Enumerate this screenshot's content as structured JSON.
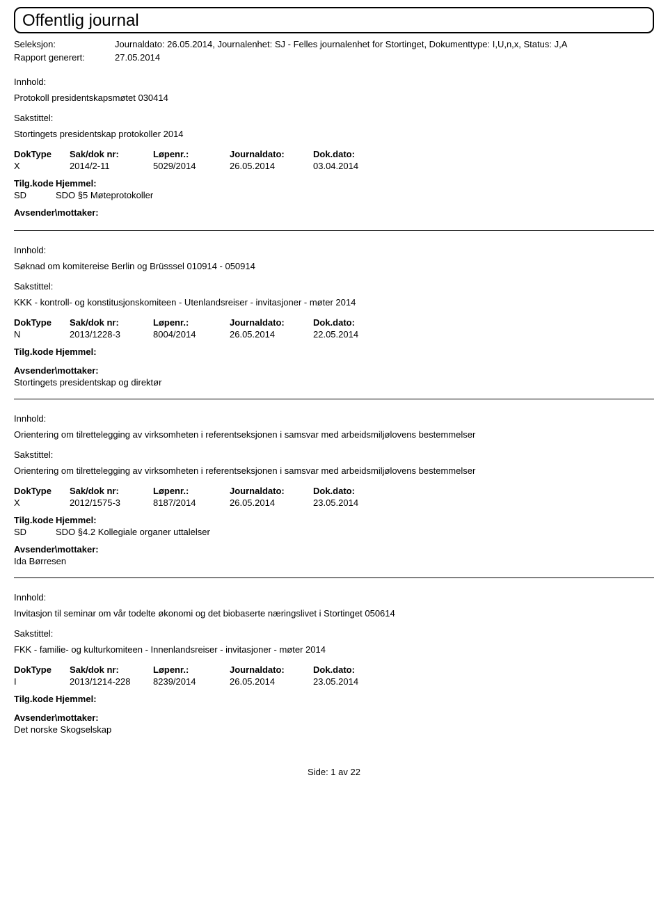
{
  "header": {
    "title": "Offentlig journal",
    "seleksjon_label": "Seleksjon:",
    "seleksjon_value": "Journaldato: 26.05.2014, Journalenhet: SJ - Felles journalenhet for Stortinget, Dokumenttype: I,U,n,x, Status: J,A",
    "rapport_label": "Rapport generert:",
    "rapport_value": "27.05.2014"
  },
  "labels": {
    "innhold": "Innhold:",
    "sakstittel": "Sakstittel:",
    "doktype": "DokType",
    "saknr": "Sak/dok nr:",
    "lopenr": "Løpenr.:",
    "journaldato": "Journaldato:",
    "dokdato": "Dok.dato:",
    "tilgkode": "Tilg.kode",
    "hjemmel": "Hjemmel:",
    "avsender": "Avsender\\mottaker:"
  },
  "entries": [
    {
      "innhold": "Protokoll presidentskapsmøtet 030414",
      "sakstittel": "Stortingets presidentskap protokoller 2014",
      "doktype": "X",
      "saknr": "2014/2-11",
      "lopenr": "5029/2014",
      "journaldato": "26.05.2014",
      "dokdato": "03.04.2014",
      "tilgkode": "SD",
      "hjemmel": "SDO §5 Møteprotokoller",
      "avsender": ""
    },
    {
      "innhold": "Søknad om komitereise Berlin og Brüsssel 010914 - 050914",
      "sakstittel": "KKK - kontroll- og konstitusjonskomiteen - Utenlandsreiser - invitasjoner - møter 2014",
      "doktype": "N",
      "saknr": "2013/1228-3",
      "lopenr": "8004/2014",
      "journaldato": "26.05.2014",
      "dokdato": "22.05.2014",
      "tilgkode": "",
      "hjemmel": "",
      "avsender": "Stortingets presidentskap og direktør"
    },
    {
      "innhold": "Orientering om tilrettelegging av virksomheten i referentseksjonen i samsvar med arbeidsmiljølovens bestemmelser",
      "sakstittel": "Orientering om tilrettelegging av virksomheten i referentseksjonen i samsvar med arbeidsmiljølovens bestemmelser",
      "doktype": "X",
      "saknr": "2012/1575-3",
      "lopenr": "8187/2014",
      "journaldato": "26.05.2014",
      "dokdato": "23.05.2014",
      "tilgkode": "SD",
      "hjemmel": "SDO §4.2 Kollegiale organer uttalelser",
      "avsender": "Ida Børresen"
    },
    {
      "innhold": "Invitasjon til seminar om vår todelte økonomi og det biobaserte næringslivet i Stortinget 050614",
      "sakstittel": "FKK - familie- og kulturkomiteen - Innenlandsreiser - invitasjoner - møter 2014",
      "doktype": "I",
      "saknr": "2013/1214-228",
      "lopenr": "8239/2014",
      "journaldato": "26.05.2014",
      "dokdato": "23.05.2014",
      "tilgkode": "",
      "hjemmel": "",
      "avsender": "Det norske Skogselskap"
    }
  ],
  "footer": "Side:  1  av  22"
}
